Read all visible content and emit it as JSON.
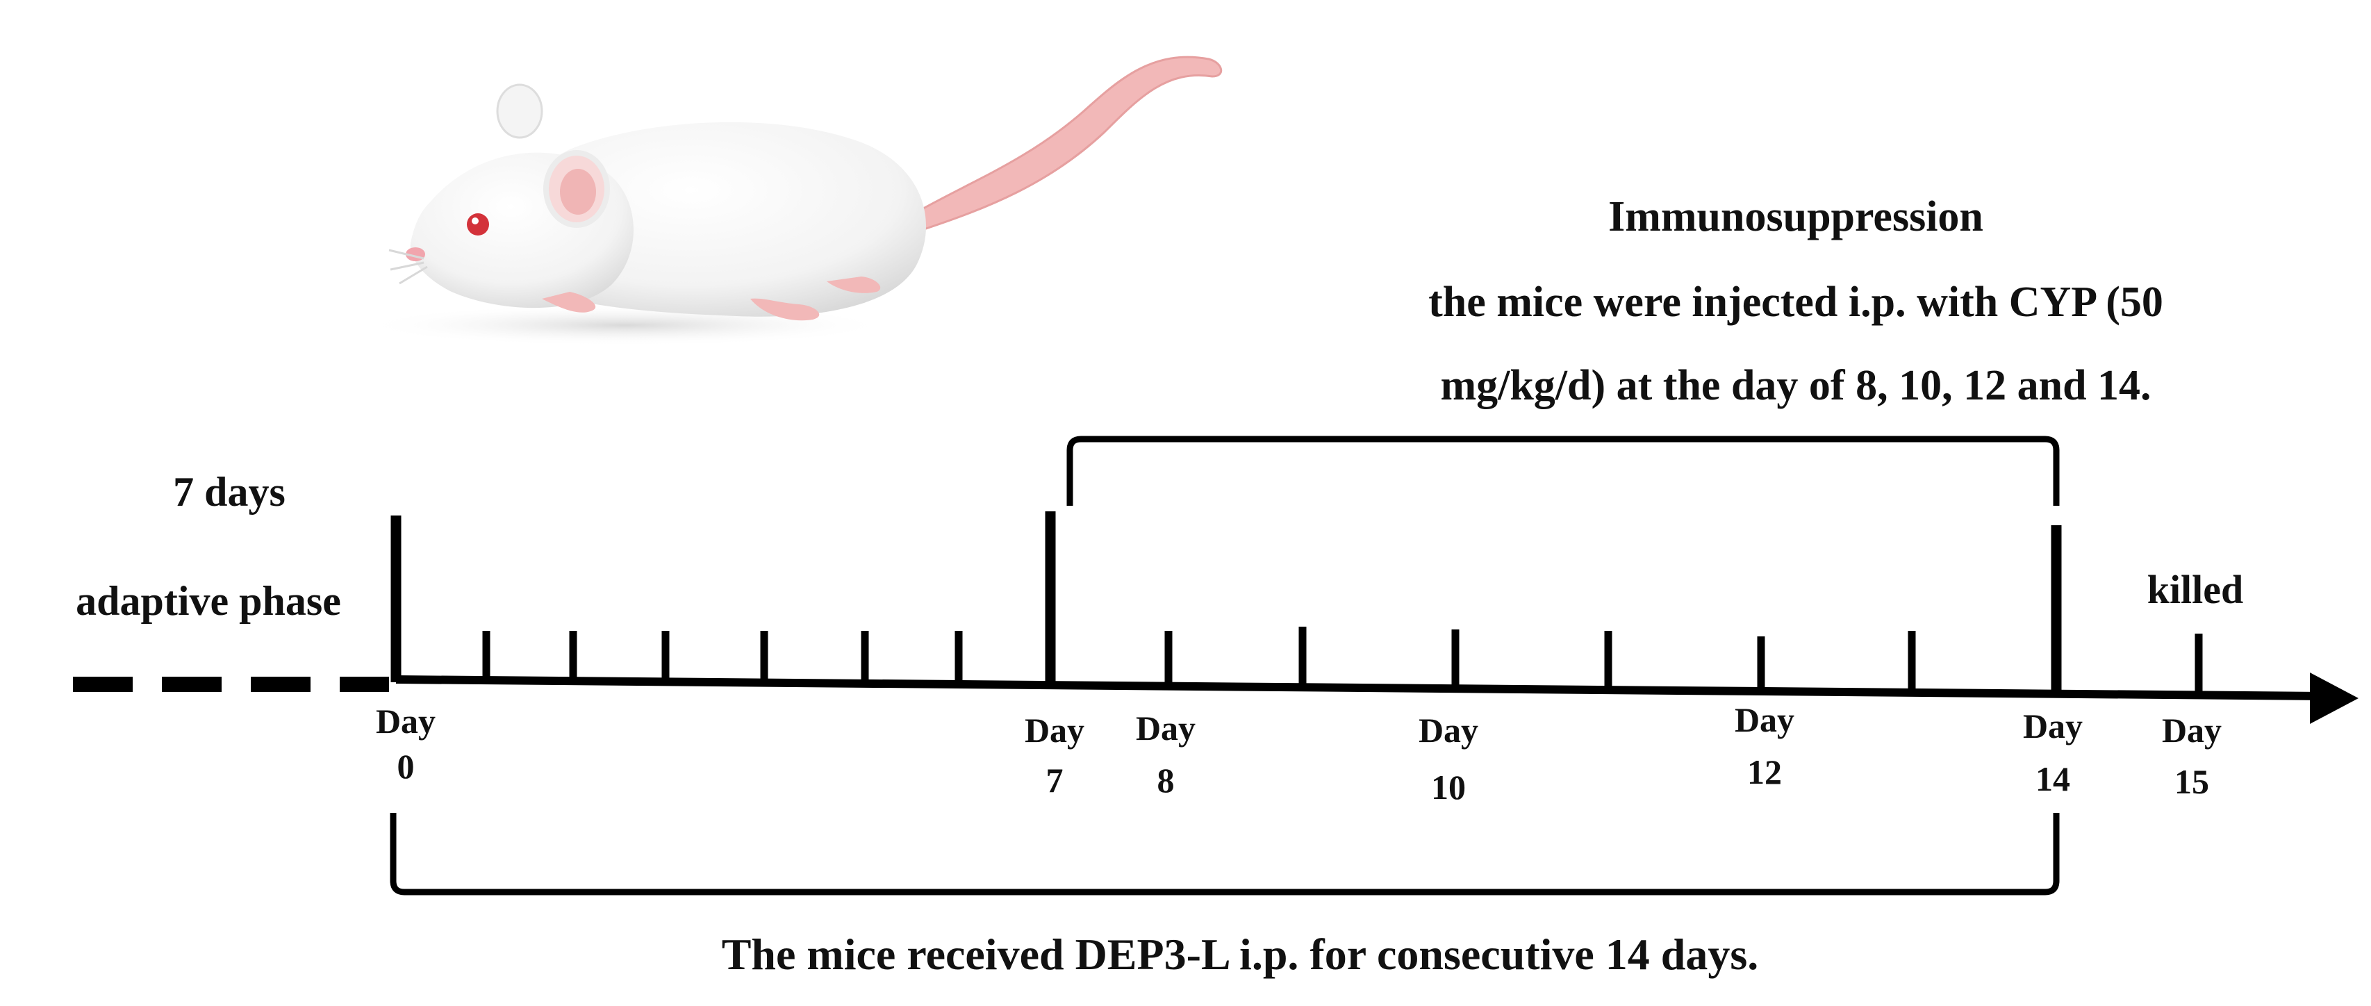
{
  "header": {
    "title": "Immunosuppression",
    "line1": "the mice were injected i.p. with CYP (50",
    "line2": "mg/kg/d) at the day of 8, 10, 12 and 14."
  },
  "adaptive": {
    "days": "7 days",
    "phase": "adaptive phase"
  },
  "killed_label": "killed",
  "footer": {
    "text": "The mice received DEP3-L i.p. for consecutive 14 days."
  },
  "day_labels": [
    {
      "word": "Day",
      "num": "0"
    },
    {
      "word": "Day",
      "num": "7"
    },
    {
      "word": "Day",
      "num": "8"
    },
    {
      "word": "Day",
      "num": "10"
    },
    {
      "word": "Day",
      "num": "12"
    },
    {
      "word": "Day",
      "num": "14"
    },
    {
      "word": "Day",
      "num": "15"
    }
  ],
  "mouse_icon": "white-laboratory-mouse"
}
